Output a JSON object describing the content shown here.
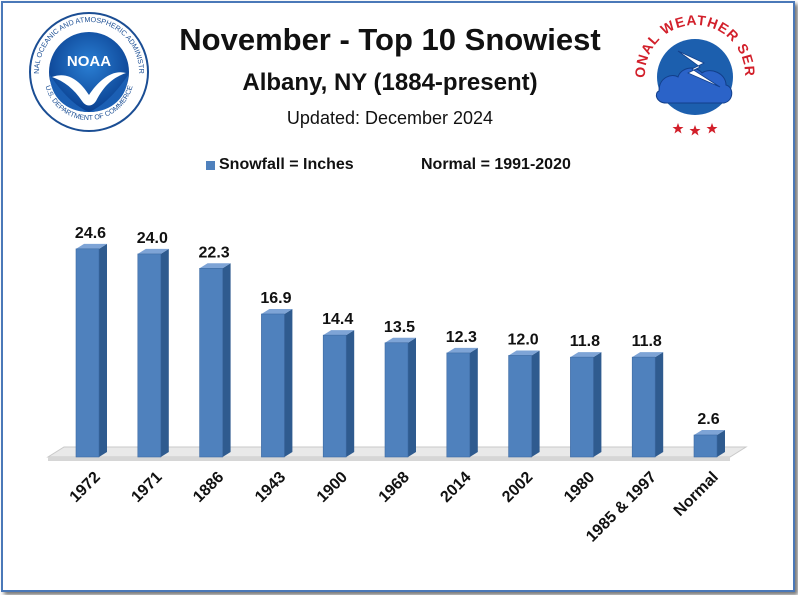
{
  "title": "November - Top 10 Snowiest",
  "subtitle": "Albany, NY (1884-present)",
  "updated": "Updated: December 2024",
  "legend": {
    "series_label": "Snowfall = Inches",
    "normal_label": "Normal = 1991-2020"
  },
  "logos": {
    "noaa": {
      "text": "NOAA",
      "ring_text": "NATIONAL OCEANIC AND ATMOSPHERIC ADMINISTRATION",
      "bottom_text": "U.S. DEPARTMENT OF COMMERCE"
    },
    "nws": {
      "ring_text": "NATIONAL WEATHER SERVICE"
    }
  },
  "colors": {
    "bar_front": "#4f81bd",
    "bar_side": "#2f5b8f",
    "bar_top": "#7ea4d6",
    "frame": "#4a78b8"
  },
  "chart_data": {
    "type": "bar",
    "categories": [
      "1972",
      "1971",
      "1886",
      "1943",
      "1900",
      "1968",
      "2014",
      "2002",
      "1980",
      "1985 & 1997",
      "Normal"
    ],
    "series": [
      {
        "name": "Snowfall = Inches",
        "values": [
          24.6,
          24.0,
          22.3,
          16.9,
          14.4,
          13.5,
          12.3,
          12.0,
          11.8,
          11.8,
          2.6
        ]
      }
    ],
    "data_labels": [
      "24.6",
      "24.0",
      "22.3",
      "16.9",
      "14.4",
      "13.5",
      "12.3",
      "12.0",
      "11.8",
      "11.8",
      "2.6"
    ],
    "ylim": [
      0,
      26
    ],
    "grid": false,
    "legend_position": "top",
    "style": "3d-column"
  }
}
